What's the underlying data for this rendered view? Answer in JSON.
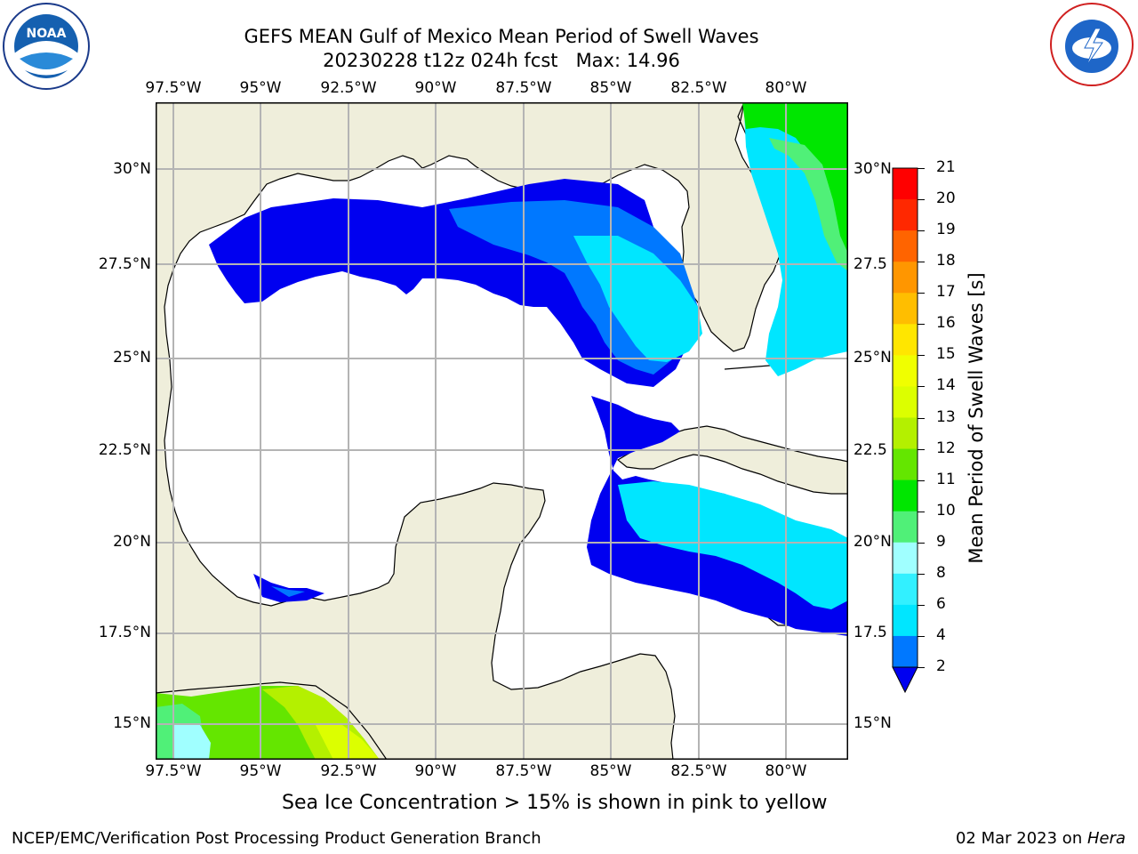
{
  "title_line1": "GEFS MEAN Gulf of Mexico Mean Period of Swell Waves",
  "title_line2": "20230228 t12z 024h fcst   Max: 14.96",
  "lon_labels": [
    "97.5°W",
    "95°W",
    "92.5°W",
    "90°W",
    "87.5°W",
    "85°W",
    "82.5°W",
    "80°W"
  ],
  "lat_labels_left": [
    "30°N",
    "27.5°N",
    "25°N",
    "22.5°N",
    "20°N",
    "17.5°N",
    "15°N"
  ],
  "lat_labels_right": [
    "30°N",
    "27.5",
    "25°N",
    "22.5",
    "20°N",
    "17.5",
    "15°N"
  ],
  "colorbar": {
    "label": "Mean Period of Swell Waves [s]",
    "ticks": [
      "2",
      "4",
      "6",
      "8",
      "9",
      "10",
      "11",
      "12",
      "13",
      "14",
      "15",
      "16",
      "17",
      "18",
      "19",
      "20",
      "21"
    ],
    "colors": [
      "#0000f0",
      "#0078ff",
      "#00e6ff",
      "#32f0ff",
      "#a0ffff",
      "#50f078",
      "#00e600",
      "#64e600",
      "#b4f000",
      "#dcff00",
      "#f0ff00",
      "#ffe600",
      "#ffbe00",
      "#ff9600",
      "#ff6400",
      "#ff2800",
      "#ff0000"
    ]
  },
  "colors": {
    "land": "#efeedb",
    "ocean": "#ffffff",
    "grid": "#b4b4b4",
    "coast": "#000000"
  },
  "sea_ice_note": "Sea Ice Concentration > 15% is shown in pink to yellow",
  "footer_left": "NCEP/EMC/Verification Post Processing Product Generation Branch",
  "footer_right_date": "02 Mar 2023 on ",
  "footer_right_host": "Hera",
  "logos": {
    "left": "noaa-logo",
    "right": "national-weather-service-logo"
  }
}
